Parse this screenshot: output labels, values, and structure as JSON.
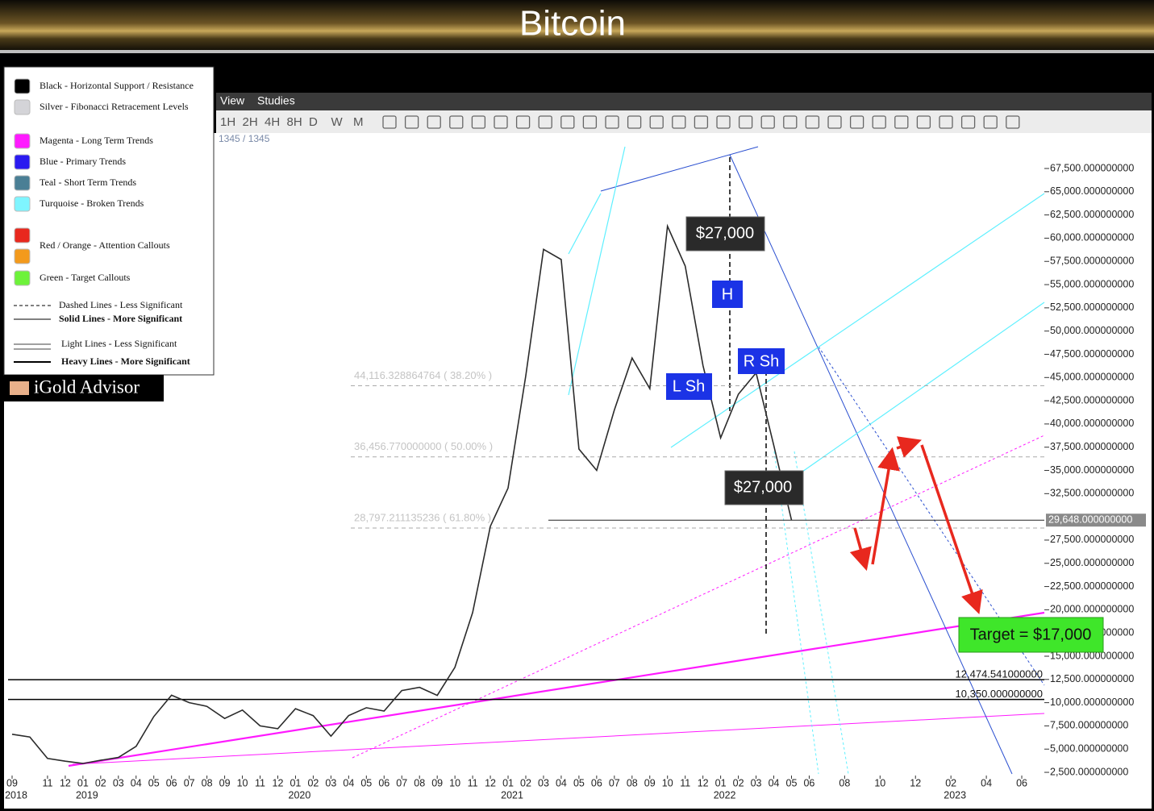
{
  "header": {
    "title": "Bitcoin"
  },
  "menu": [
    "View",
    "Studies"
  ],
  "toolbar": [
    "1H",
    "2H",
    "4H",
    "8H",
    "D",
    "W",
    "M"
  ],
  "counter": "1345 / 1345",
  "brand": "iGold Advisor",
  "legend": [
    {
      "label": "Black - Horizontal Support / Resistance",
      "colors": [
        "#000000"
      ]
    },
    {
      "label": "Silver - Fibonacci Retracement Levels",
      "colors": [
        "#d4d4d8"
      ]
    },
    {
      "label": "Magenta - Long Term Trends",
      "colors": [
        "#ff1aff"
      ]
    },
    {
      "label": "Blue - Primary Trends",
      "colors": [
        "#2a1af0"
      ]
    },
    {
      "label": "Teal - Short Term Trends",
      "colors": [
        "#4a7f95"
      ]
    },
    {
      "label": "Turquoise - Broken Trends",
      "colors": [
        "#7ff5ff"
      ]
    },
    {
      "label": "Red / Orange - Attention Callouts",
      "colors": [
        "#e8281e",
        "#f39a1c"
      ]
    },
    {
      "label": "Green - Target Callouts",
      "colors": [
        "#6df23a"
      ]
    }
  ],
  "line_legend": [
    "Dashed Lines - Less Significant",
    "Solid Lines - More Significant",
    "Light Lines - Less Significant",
    "Heavy Lines - More Significant"
  ],
  "chart_data": {
    "type": "line",
    "color": "#2b2b2b",
    "x": [
      "2018-09",
      "2018-10",
      "2018-11",
      "2018-12",
      "2019-01",
      "2019-02",
      "2019-03",
      "2019-04",
      "2019-05",
      "2019-06",
      "2019-07",
      "2019-08",
      "2019-09",
      "2019-10",
      "2019-11",
      "2019-12",
      "2020-01",
      "2020-02",
      "2020-03",
      "2020-04",
      "2020-05",
      "2020-06",
      "2020-07",
      "2020-08",
      "2020-09",
      "2020-10",
      "2020-11",
      "2020-12",
      "2021-01",
      "2021-02",
      "2021-03",
      "2021-04",
      "2021-05",
      "2021-06",
      "2021-07",
      "2021-08",
      "2021-09",
      "2021-10",
      "2021-11",
      "2021-12",
      "2022-01",
      "2022-02",
      "2022-03",
      "2022-04",
      "2022-05"
    ],
    "values": [
      6600,
      6300,
      4000,
      3700,
      3450,
      3800,
      4100,
      5300,
      8500,
      10800,
      10000,
      9600,
      8300,
      9200,
      7500,
      7200,
      9350,
      8600,
      6400,
      8600,
      9450,
      9100,
      11300,
      11650,
      10780,
      13800,
      19700,
      29000,
      33100,
      45200,
      58800,
      57700,
      37300,
      35000,
      41500,
      47100,
      43800,
      61300,
      57000,
      46300,
      38500,
      43200,
      45500,
      37700,
      29648
    ],
    "xlim": [
      "2018-09",
      "2023-07"
    ],
    "ylim": [
      2000,
      70000
    ],
    "xticks": [
      {
        "value": "2018-09",
        "label": "09"
      },
      {
        "value": "2018-11",
        "label": "11"
      },
      {
        "value": "2018-12",
        "label": "12"
      },
      {
        "value": "2019-01",
        "label": "01"
      },
      {
        "value": "2019-02",
        "label": "02"
      },
      {
        "value": "2019-03",
        "label": "03"
      },
      {
        "value": "2019-04",
        "label": "04"
      },
      {
        "value": "2019-05",
        "label": "05"
      },
      {
        "value": "2019-06",
        "label": "06"
      },
      {
        "value": "2019-07",
        "label": "07"
      },
      {
        "value": "2019-08",
        "label": "08"
      },
      {
        "value": "2019-09",
        "label": "09"
      },
      {
        "value": "2019-10",
        "label": "10"
      },
      {
        "value": "2019-11",
        "label": "11"
      },
      {
        "value": "2019-12",
        "label": "12"
      },
      {
        "value": "2020-01",
        "label": "01"
      },
      {
        "value": "2020-02",
        "label": "02"
      },
      {
        "value": "2020-03",
        "label": "03"
      },
      {
        "value": "2020-04",
        "label": "04"
      },
      {
        "value": "2020-05",
        "label": "05"
      },
      {
        "value": "2020-06",
        "label": "06"
      },
      {
        "value": "2020-07",
        "label": "07"
      },
      {
        "value": "2020-08",
        "label": "08"
      },
      {
        "value": "2020-09",
        "label": "09"
      },
      {
        "value": "2020-10",
        "label": "10"
      },
      {
        "value": "2020-11",
        "label": "11"
      },
      {
        "value": "2020-12",
        "label": "12"
      },
      {
        "value": "2021-01",
        "label": "01"
      },
      {
        "value": "2021-02",
        "label": "02"
      },
      {
        "value": "2021-03",
        "label": "03"
      },
      {
        "value": "2021-04",
        "label": "04"
      },
      {
        "value": "2021-05",
        "label": "05"
      },
      {
        "value": "2021-06",
        "label": "06"
      },
      {
        "value": "2021-07",
        "label": "07"
      },
      {
        "value": "2021-08",
        "label": "08"
      },
      {
        "value": "2021-09",
        "label": "09"
      },
      {
        "value": "2021-10",
        "label": "10"
      },
      {
        "value": "2021-11",
        "label": "11"
      },
      {
        "value": "2021-12",
        "label": "12"
      },
      {
        "value": "2022-01",
        "label": "01"
      },
      {
        "value": "2022-02",
        "label": "02"
      },
      {
        "value": "2022-03",
        "label": "03"
      },
      {
        "value": "2022-04",
        "label": "04"
      },
      {
        "value": "2022-05",
        "label": "05"
      },
      {
        "value": "2022-06",
        "label": "06"
      },
      {
        "value": "2022-08",
        "label": "08"
      },
      {
        "value": "2022-10",
        "label": "10"
      },
      {
        "value": "2022-12",
        "label": "12"
      },
      {
        "value": "2023-02",
        "label": "02"
      },
      {
        "value": "2023-04",
        "label": "04"
      },
      {
        "value": "2023-06",
        "label": "06"
      }
    ],
    "xtick_years": [
      {
        "value": "2018-09",
        "label": "2018"
      },
      {
        "value": "2019-01",
        "label": "2019"
      },
      {
        "value": "2020-01",
        "label": "2020"
      },
      {
        "value": "2021-01",
        "label": "2021"
      },
      {
        "value": "2022-01",
        "label": "2022"
      },
      {
        "value": "2023-02",
        "label": "2023"
      }
    ],
    "yticks": [
      {
        "value": 2500,
        "label": "2,500.000000000"
      },
      {
        "value": 5000,
        "label": "5,000.000000000"
      },
      {
        "value": 7500,
        "label": "7,500.000000000"
      },
      {
        "value": 10000,
        "label": "10,000.000000000"
      },
      {
        "value": 12500,
        "label": "12,500.000000000"
      },
      {
        "value": 15000,
        "label": "15,000.000000000"
      },
      {
        "value": 17500,
        "label": "17,500.000000000"
      },
      {
        "value": 20000,
        "label": "20,000.000000000"
      },
      {
        "value": 22500,
        "label": "22,500.000000000"
      },
      {
        "value": 25000,
        "label": "25,000.000000000"
      },
      {
        "value": 27500,
        "label": "27,500.000000000"
      },
      {
        "value": 32500,
        "label": "32,500.000000000"
      },
      {
        "value": 35000,
        "label": "35,000.000000000"
      },
      {
        "value": 37500,
        "label": "37,500.000000000"
      },
      {
        "value": 40000,
        "label": "40,000.000000000"
      },
      {
        "value": 42500,
        "label": "42,500.000000000"
      },
      {
        "value": 45000,
        "label": "45,000.000000000"
      },
      {
        "value": 47500,
        "label": "47,500.000000000"
      },
      {
        "value": 50000,
        "label": "50,000.000000000"
      },
      {
        "value": 52500,
        "label": "52,500.000000000"
      },
      {
        "value": 55000,
        "label": "55,000.000000000"
      },
      {
        "value": 57500,
        "label": "57,500.000000000"
      },
      {
        "value": 60000,
        "label": "60,000.000000000"
      },
      {
        "value": 62500,
        "label": "62,500.000000000"
      },
      {
        "value": 65000,
        "label": "65,000.000000000"
      },
      {
        "value": 67500,
        "label": "67,500.000000000"
      }
    ],
    "fib_levels": [
      {
        "value": 44116.328864764,
        "label": "44,116.328864764 ( 38.20% )"
      },
      {
        "value": 36456.77,
        "label": "36,456.770000000 ( 50.00% )"
      },
      {
        "value": 28797.211135236,
        "label": "28,797.211135236 ( 61.80% )"
      }
    ],
    "support_levels": [
      {
        "value": 12474.541,
        "label": "12,474.541000000"
      },
      {
        "value": 10350,
        "label": "10,350.000000000"
      }
    ],
    "last_price": {
      "value": 29648,
      "label": "29,648.000000000"
    },
    "annotations": {
      "neckline_top": "$27,000",
      "neckline_bottom": "$27,000",
      "head": "H",
      "left_shoulder": "L Sh",
      "right_shoulder": "R Sh",
      "target": "Target = $17,000"
    }
  }
}
